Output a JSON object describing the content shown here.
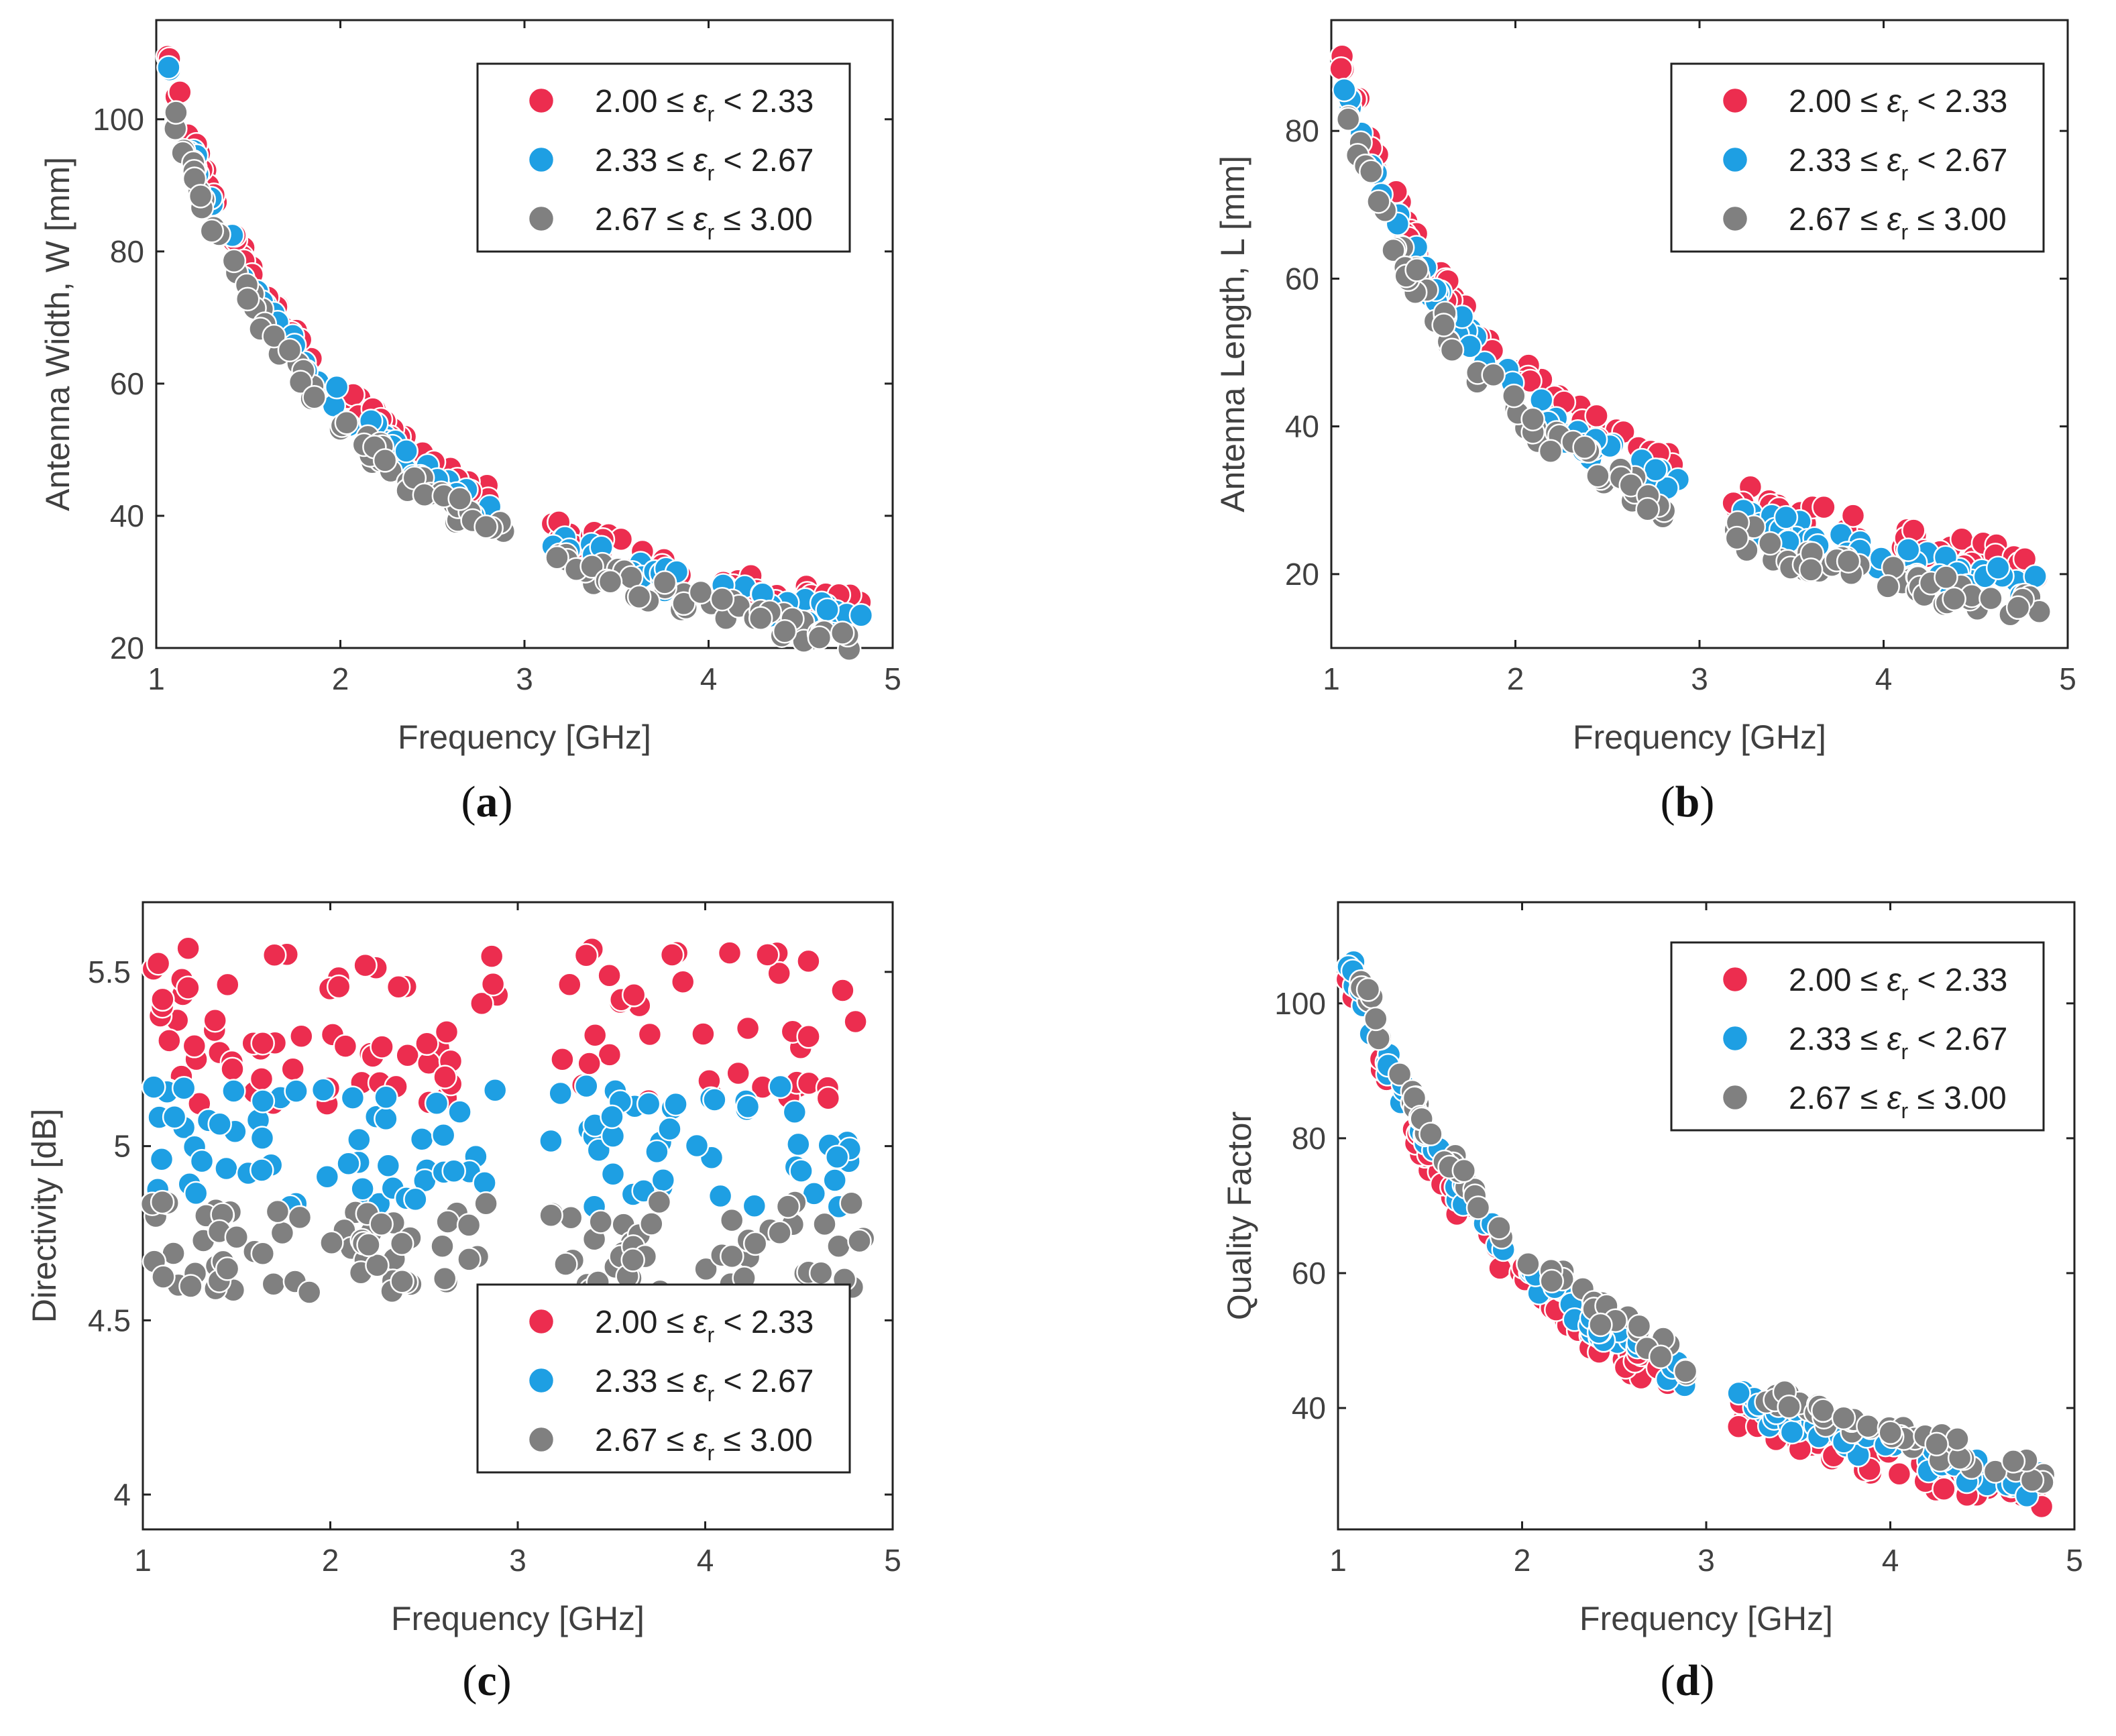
{
  "colors": {
    "group1": "#ec2d4f",
    "group2": "#1e9fe3",
    "group3": "#808080",
    "axis": "#222222",
    "text": "#404040"
  },
  "legend": {
    "entries": [
      {
        "key": "group1",
        "lo": "2.00",
        "op1": "≤",
        "sym": "ε",
        "sub": "r",
        "op2": "<",
        "hi": "2.33"
      },
      {
        "key": "group2",
        "lo": "2.33",
        "op1": "≤",
        "sym": "ε",
        "sub": "r",
        "op2": "<",
        "hi": "2.67"
      },
      {
        "key": "group3",
        "lo": "2.67",
        "op1": "≤",
        "sym": "ε",
        "sub": "r",
        "op2": "≤",
        "hi": "3.00"
      }
    ]
  },
  "chart_data": [
    {
      "id": "a",
      "caption_letter": "a",
      "type": "scatter",
      "xlabel": "Frequency [GHz]",
      "ylabel": "Antenna Width, W [mm]",
      "xlim": [
        1,
        5
      ],
      "ylim": [
        20,
        115
      ],
      "xticks": [
        1,
        2,
        3,
        4,
        5
      ],
      "yticks": [
        20,
        40,
        60,
        80,
        100
      ],
      "legend_position": "top-right",
      "curve": {
        "kind": "power",
        "coef": 113,
        "exp": -1,
        "offsets": {
          "group1": 2.5,
          "group2": 0.5,
          "group3": -2.0
        }
      }
    },
    {
      "id": "b",
      "caption_letter": "b",
      "type": "scatter",
      "xlabel": "Frequency [GHz]",
      "ylabel": "Antenna Length, L [mm]",
      "xlim": [
        1,
        5
      ],
      "ylim": [
        10,
        95
      ],
      "xticks": [
        1,
        2,
        3,
        4,
        5
      ],
      "yticks": [
        20,
        40,
        60,
        80
      ],
      "legend_position": "top-right",
      "curve": {
        "kind": "power",
        "coef": 92,
        "exp": -1.03,
        "offsets": {
          "group1": 3.0,
          "group2": 0.3,
          "group3": -2.5
        }
      }
    },
    {
      "id": "c",
      "caption_letter": "c",
      "type": "scatter",
      "xlabel": "Frequency [GHz]",
      "ylabel": "Directivity [dB]",
      "xlim": [
        1,
        5
      ],
      "ylim": [
        3.9,
        5.7
      ],
      "xticks": [
        1,
        2,
        3,
        4,
        5
      ],
      "yticks": [
        4,
        4.5,
        5,
        5.5
      ],
      "legend_position": "bottom-right",
      "bands": {
        "group1": [
          5.12,
          5.57
        ],
        "group2": [
          4.82,
          5.18
        ],
        "group3": [
          4.58,
          4.84
        ]
      }
    },
    {
      "id": "d",
      "caption_letter": "d",
      "type": "scatter",
      "xlabel": "Frequency [GHz]",
      "ylabel": "Quality Factor",
      "xlim": [
        1,
        5
      ],
      "ylim": [
        22,
        115
      ],
      "xticks": [
        1,
        2,
        3,
        4,
        5
      ],
      "yticks": [
        40,
        60,
        80,
        100
      ],
      "legend_position": "top-right",
      "curve": {
        "kind": "power",
        "coef": 112,
        "exp": -0.87,
        "offsets": {
          "group1": -2.0,
          "group2": 0.0,
          "group3": 2.5
        }
      }
    }
  ]
}
